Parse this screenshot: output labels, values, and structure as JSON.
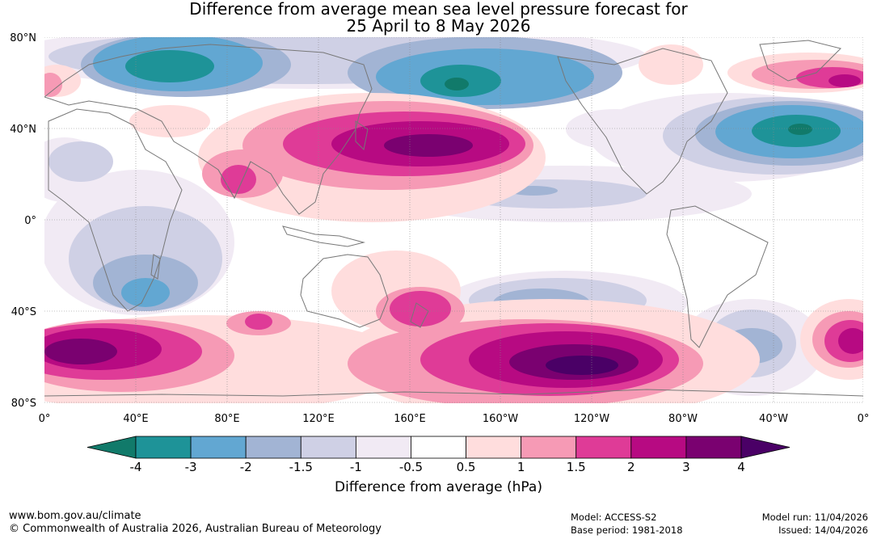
{
  "title": {
    "line1": "Difference from average mean sea level pressure forecast for",
    "line2": "25 April to 8 May 2026"
  },
  "axes": {
    "lat_labels": [
      "80°N",
      "40°N",
      "0°",
      "40°S",
      "80°S"
    ],
    "lon_labels": [
      "0°",
      "40°E",
      "80°E",
      "120°E",
      "160°E",
      "160°W",
      "120°W",
      "80°W",
      "40°W",
      "0°"
    ]
  },
  "colorbar": {
    "ticks": [
      "-4",
      "-3",
      "-2",
      "-1.5",
      "-1",
      "-0.5",
      "0.5",
      "1",
      "1.5",
      "2",
      "3",
      "4"
    ],
    "colors": [
      "#117a6a",
      "#1e9398",
      "#62a7d2",
      "#a2b4d4",
      "#cfd0e5",
      "#f1eaf4",
      "#ffffff",
      "#ffdddd",
      "#f69ab5",
      "#df3b97",
      "#b70a82",
      "#7a0170",
      "#4a0066"
    ],
    "title": "Difference from average (hPa)"
  },
  "footer": {
    "website": "www.bom.gov.au/climate",
    "copyright": "© Commonwealth of Australia 2026, Australian Bureau of Meteorology",
    "model": "Model: ACCESS-S2",
    "base_period": "Base period: 1981-2018",
    "model_run": "Model run: 11/04/2026",
    "issued": "Issued: 14/04/2026"
  }
}
